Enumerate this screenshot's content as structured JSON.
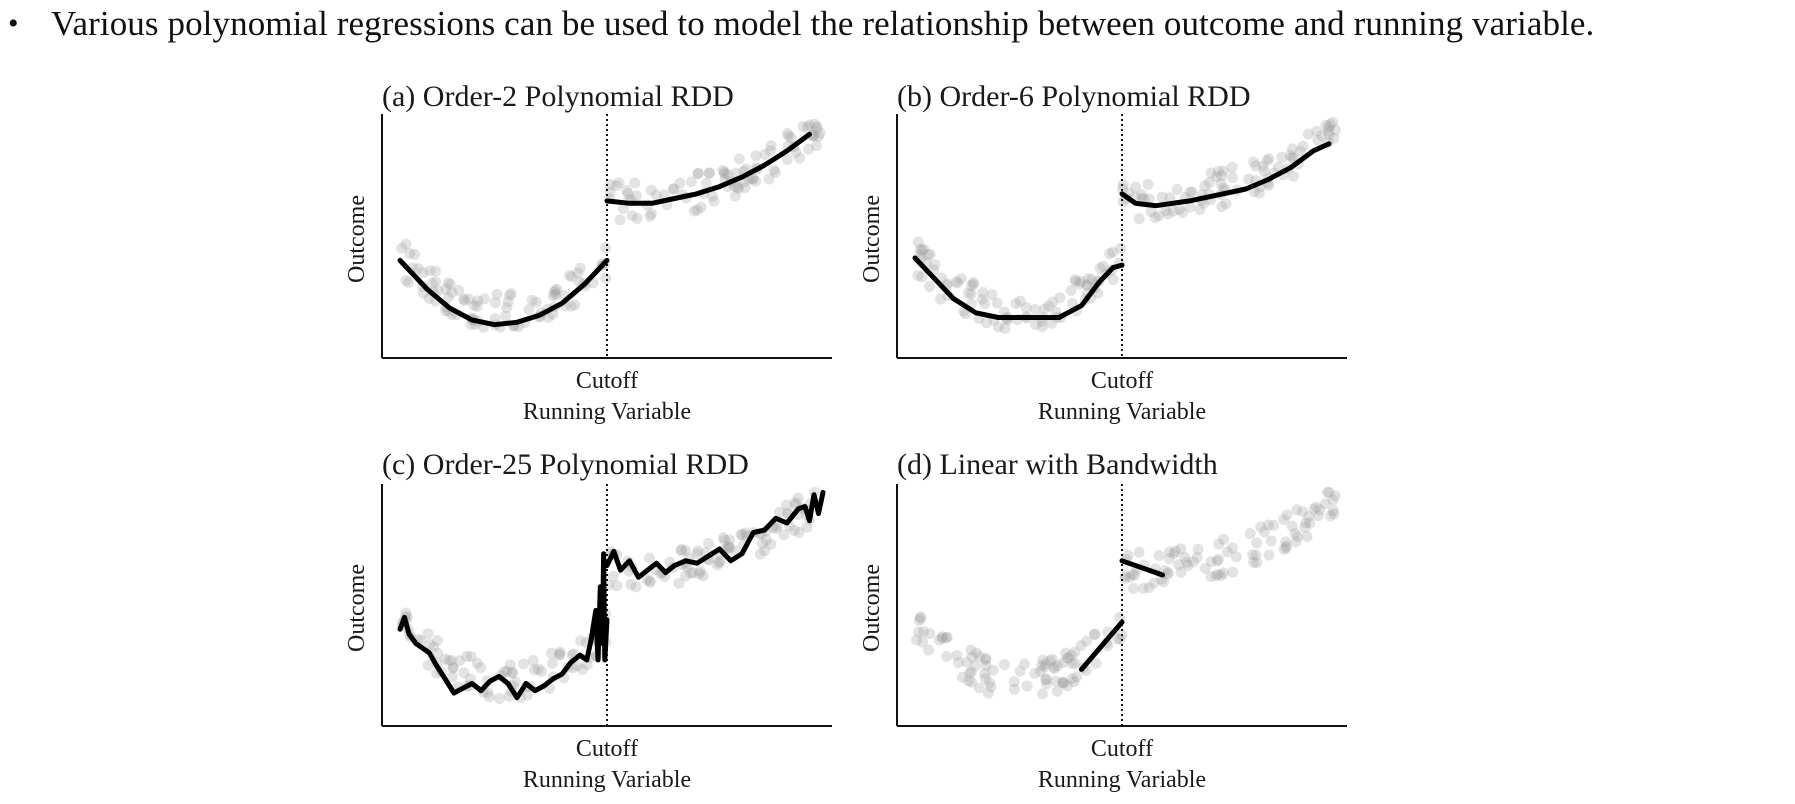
{
  "bullet": {
    "symbol": "•",
    "text": "Various polynomial regressions can be used to model the relationship between outcome and running variable."
  },
  "chart_data": [
    {
      "id": "a",
      "type": "scatter",
      "title": "(a) Order-2 Polynomial RDD",
      "xlabel": "Running Variable",
      "ylabel": "Outcome",
      "xtick_labels": [
        "Cutoff"
      ],
      "cutoff": 0,
      "xlim": [
        -1,
        1
      ],
      "ylim": [
        0,
        1
      ],
      "fit_left": [
        [
          -0.92,
          0.41
        ],
        [
          -0.8,
          0.29
        ],
        [
          -0.7,
          0.21
        ],
        [
          -0.6,
          0.16
        ],
        [
          -0.5,
          0.14
        ],
        [
          -0.4,
          0.15
        ],
        [
          -0.3,
          0.18
        ],
        [
          -0.2,
          0.23
        ],
        [
          -0.1,
          0.31
        ],
        [
          0,
          0.41
        ]
      ],
      "fit_right": [
        [
          0,
          0.66
        ],
        [
          0.1,
          0.65
        ],
        [
          0.2,
          0.65
        ],
        [
          0.3,
          0.67
        ],
        [
          0.4,
          0.69
        ],
        [
          0.5,
          0.72
        ],
        [
          0.6,
          0.76
        ],
        [
          0.7,
          0.81
        ],
        [
          0.8,
          0.87
        ],
        [
          0.9,
          0.94
        ]
      ]
    },
    {
      "id": "b",
      "type": "scatter",
      "title": "(b) Order-6 Polynomial RDD",
      "xlabel": "Running Variable",
      "ylabel": "Outcome",
      "xtick_labels": [
        "Cutoff"
      ],
      "cutoff": 0,
      "xlim": [
        -1,
        1
      ],
      "ylim": [
        0,
        1
      ],
      "fit_left": [
        [
          -0.92,
          0.42
        ],
        [
          -0.85,
          0.35
        ],
        [
          -0.75,
          0.25
        ],
        [
          -0.65,
          0.19
        ],
        [
          -0.55,
          0.17
        ],
        [
          -0.45,
          0.17
        ],
        [
          -0.35,
          0.17
        ],
        [
          -0.28,
          0.17
        ],
        [
          -0.18,
          0.22
        ],
        [
          -0.1,
          0.32
        ],
        [
          -0.04,
          0.38
        ],
        [
          0,
          0.39
        ]
      ],
      "fit_right": [
        [
          0,
          0.69
        ],
        [
          0.06,
          0.65
        ],
        [
          0.15,
          0.64
        ],
        [
          0.3,
          0.66
        ],
        [
          0.45,
          0.69
        ],
        [
          0.55,
          0.71
        ],
        [
          0.65,
          0.75
        ],
        [
          0.75,
          0.8
        ],
        [
          0.85,
          0.87
        ],
        [
          0.92,
          0.9
        ]
      ]
    },
    {
      "id": "c",
      "type": "scatter",
      "title": "(c) Order-25 Polynomial RDD",
      "xlabel": "Running Variable",
      "ylabel": "Outcome",
      "xtick_labels": [
        "Cutoff"
      ],
      "cutoff": 0,
      "xlim": [
        -1,
        1
      ],
      "ylim": [
        0,
        1
      ],
      "fit_left": [
        [
          -0.92,
          0.41
        ],
        [
          -0.9,
          0.46
        ],
        [
          -0.88,
          0.39
        ],
        [
          -0.85,
          0.35
        ],
        [
          -0.82,
          0.33
        ],
        [
          -0.79,
          0.31
        ],
        [
          -0.76,
          0.26
        ],
        [
          -0.72,
          0.2
        ],
        [
          -0.68,
          0.14
        ],
        [
          -0.64,
          0.16
        ],
        [
          -0.6,
          0.18
        ],
        [
          -0.56,
          0.15
        ],
        [
          -0.52,
          0.19
        ],
        [
          -0.48,
          0.21
        ],
        [
          -0.44,
          0.18
        ],
        [
          -0.4,
          0.12
        ],
        [
          -0.36,
          0.18
        ],
        [
          -0.32,
          0.15
        ],
        [
          -0.28,
          0.17
        ],
        [
          -0.24,
          0.2
        ],
        [
          -0.2,
          0.22
        ],
        [
          -0.16,
          0.27
        ],
        [
          -0.12,
          0.3
        ],
        [
          -0.09,
          0.28
        ],
        [
          -0.07,
          0.37
        ],
        [
          -0.05,
          0.49
        ],
        [
          -0.04,
          0.28
        ],
        [
          -0.03,
          0.59
        ],
        [
          -0.02,
          0.35
        ],
        [
          -0.015,
          0.73
        ],
        [
          -0.01,
          0.28
        ],
        [
          0,
          0.45
        ]
      ],
      "fit_right": [
        [
          0,
          0.68
        ],
        [
          0.03,
          0.74
        ],
        [
          0.06,
          0.66
        ],
        [
          0.1,
          0.7
        ],
        [
          0.14,
          0.63
        ],
        [
          0.18,
          0.66
        ],
        [
          0.22,
          0.69
        ],
        [
          0.26,
          0.65
        ],
        [
          0.3,
          0.68
        ],
        [
          0.35,
          0.7
        ],
        [
          0.4,
          0.69
        ],
        [
          0.45,
          0.72
        ],
        [
          0.5,
          0.75
        ],
        [
          0.55,
          0.7
        ],
        [
          0.6,
          0.73
        ],
        [
          0.65,
          0.82
        ],
        [
          0.7,
          0.83
        ],
        [
          0.75,
          0.88
        ],
        [
          0.8,
          0.86
        ],
        [
          0.85,
          0.92
        ],
        [
          0.88,
          0.93
        ],
        [
          0.9,
          0.87
        ],
        [
          0.92,
          0.98
        ],
        [
          0.94,
          0.9
        ],
        [
          0.96,
          0.99
        ]
      ]
    },
    {
      "id": "d",
      "type": "scatter",
      "title": "(d) Linear with Bandwidth",
      "xlabel": "Running Variable",
      "ylabel": "Outcome",
      "xtick_labels": [
        "Cutoff"
      ],
      "cutoff": 0,
      "xlim": [
        -1,
        1
      ],
      "ylim": [
        0,
        1
      ],
      "fit_left": [
        [
          -0.18,
          0.24
        ],
        [
          0,
          0.44
        ]
      ],
      "fit_right": [
        [
          0,
          0.7
        ],
        [
          0.18,
          0.64
        ]
      ]
    }
  ]
}
